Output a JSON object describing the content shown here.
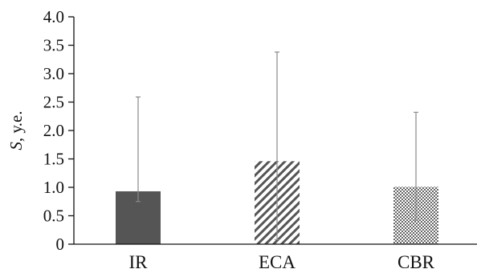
{
  "chart_data": {
    "type": "bar",
    "title": "",
    "xlabel": "",
    "ylabel": {
      "symbol": "S",
      "unit": ", у.е."
    },
    "ylim": [
      0,
      4.0
    ],
    "yticks": [
      "0",
      "0.5",
      "1.0",
      "1.5",
      "2.0",
      "2.5",
      "3.0",
      "3.5",
      "4.0"
    ],
    "categories": [
      "IR",
      "ECA",
      "CBR"
    ],
    "values": [
      0.93,
      1.46,
      1.01
    ],
    "error_low": [
      0.75,
      0.08,
      0.42
    ],
    "error_high": [
      2.59,
      3.38,
      2.32
    ],
    "grid": false,
    "legend": "none",
    "bar_patterns": [
      "solid-dark",
      "diagonal-hatch",
      "crosshatch"
    ],
    "colors": {
      "bar_fill": "#555555",
      "hatch": "#555555",
      "axis": "#111111",
      "error_bar": "#888888"
    }
  }
}
